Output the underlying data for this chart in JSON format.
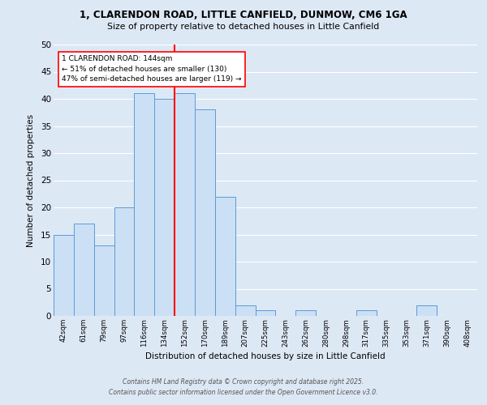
{
  "title1": "1, CLARENDON ROAD, LITTLE CANFIELD, DUNMOW, CM6 1GA",
  "title2": "Size of property relative to detached houses in Little Canfield",
  "xlabel": "Distribution of detached houses by size in Little Canfield",
  "ylabel": "Number of detached properties",
  "bar_labels": [
    "42sqm",
    "61sqm",
    "79sqm",
    "97sqm",
    "116sqm",
    "134sqm",
    "152sqm",
    "170sqm",
    "189sqm",
    "207sqm",
    "225sqm",
    "243sqm",
    "262sqm",
    "280sqm",
    "298sqm",
    "317sqm",
    "335sqm",
    "353sqm",
    "371sqm",
    "390sqm",
    "408sqm"
  ],
  "bar_values": [
    15,
    17,
    13,
    20,
    41,
    40,
    41,
    38,
    22,
    2,
    1,
    0,
    1,
    0,
    0,
    1,
    0,
    0,
    2,
    0,
    0
  ],
  "bar_color": "#cce0f5",
  "bar_edge_color": "#5b9bd5",
  "background_color": "#dde8f5",
  "grid_color": "#ffffff",
  "vline_color": "red",
  "annotation_text": "1 CLARENDON ROAD: 144sqm\n← 51% of detached houses are smaller (130)\n47% of semi-detached houses are larger (119) →",
  "annotation_box_color": "white",
  "annotation_box_edge": "red",
  "footer1": "Contains HM Land Registry data © Crown copyright and database right 2025.",
  "footer2": "Contains public sector information licensed under the Open Government Licence v3.0.",
  "ylim": [
    0,
    50
  ],
  "yticks": [
    0,
    5,
    10,
    15,
    20,
    25,
    30,
    35,
    40,
    45,
    50
  ],
  "vline_x_index": 5.5
}
